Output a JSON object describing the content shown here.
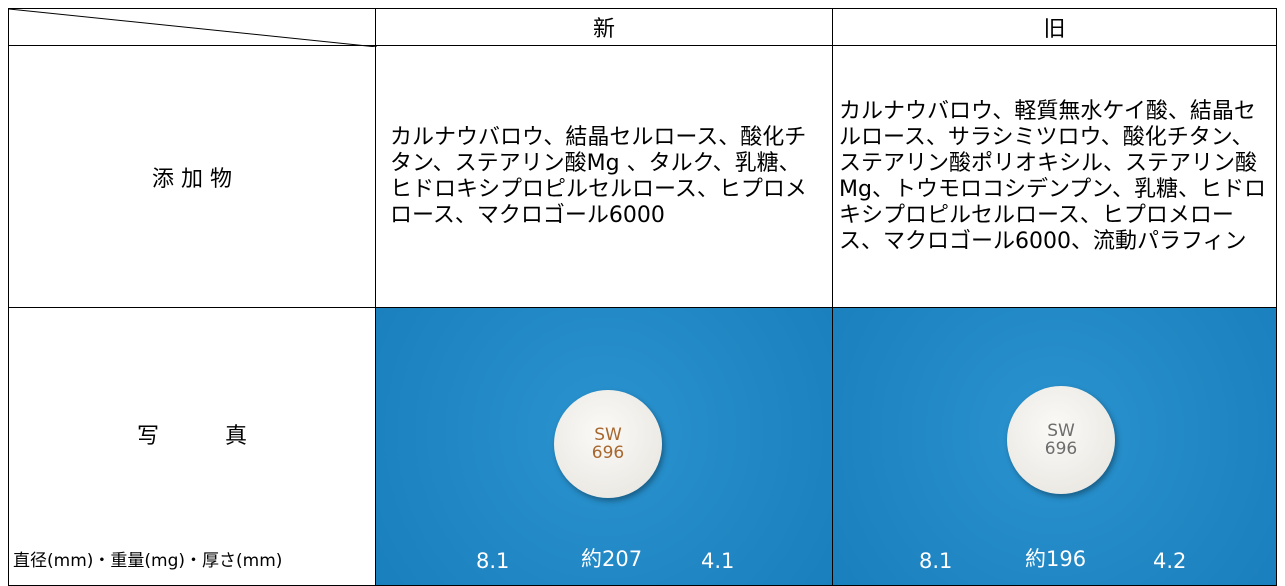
{
  "table": {
    "header": {
      "new": "新",
      "old": "旧"
    },
    "additives": {
      "label": "添 加 物",
      "new": "カルナウバロウ、結晶セルロース、酸化チタン、ステアリン酸Mg 、タルク、乳糖、ヒドロキシプロピルセルロース、ヒプロメロース、マクロゴール6000",
      "old": "カルナウバロウ、軽質無水ケイ酸、結晶セルロース、サラシミツロウ、酸化チタン、ステアリン酸ポリオキシル、ステアリン酸Mg、トウモロコシデンプン、乳糖、ヒドロキシプロピルセルロース、ヒプロメロース、マクロゴール6000、流動パラフィン"
    },
    "photo": {
      "label": "写　　　真",
      "spec_label": "直径(mm)・重量(mg)・厚さ(mm)",
      "new": {
        "imprint": [
          "SW",
          "696"
        ],
        "specs": [
          "8.1",
          "約207",
          "4.1"
        ]
      },
      "old": {
        "imprint": [
          "SW",
          "696"
        ],
        "specs": [
          "8.1",
          "約196",
          "4.2"
        ]
      }
    }
  }
}
